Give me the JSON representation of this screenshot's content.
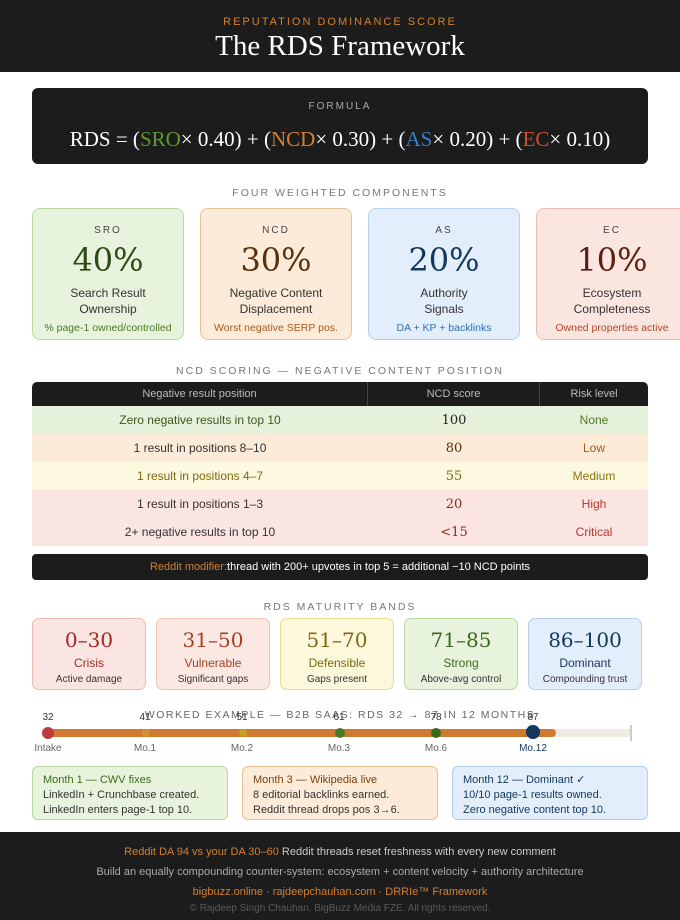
{
  "header": {
    "eyebrow": "REPUTATION DOMINANCE SCORE",
    "title": "The RDS Framework"
  },
  "formula": {
    "label": "FORMULA",
    "prefix": "RDS = (",
    "terms": [
      {
        "abbr": "SRO",
        "mult": "× 0.40)",
        "join": " + (",
        "color": "#5a9a2e"
      },
      {
        "abbr": "NCD",
        "mult": "× 0.30)",
        "join": " + (",
        "color": "#d4802e"
      },
      {
        "abbr": "AS",
        "mult": "× 0.20)",
        "join": " + (",
        "color": "#3a7ec8"
      },
      {
        "abbr": "EC",
        "mult": "× 0.10)",
        "join": "",
        "color": "#c8502e"
      }
    ]
  },
  "components": {
    "label": "FOUR WEIGHTED COMPONENTS",
    "items": [
      {
        "abbr": "SRO",
        "pct": "40%",
        "name1": "Search Result",
        "name2": "Ownership",
        "desc": "% page-1 owned/controlled"
      },
      {
        "abbr": "NCD",
        "pct": "30%",
        "name1": "Negative Content",
        "name2": "Displacement",
        "desc": "Worst negative SERP pos."
      },
      {
        "abbr": "AS",
        "pct": "20%",
        "name1": "Authority",
        "name2": "Signals",
        "desc": "DA + KP + backlinks"
      },
      {
        "abbr": "EC",
        "pct": "10%",
        "name1": "Ecosystem",
        "name2": "Completeness",
        "desc": "Owned properties active"
      }
    ]
  },
  "ncd": {
    "label": "NCD SCORING — NEGATIVE CONTENT POSITION",
    "headers": [
      "Negative result position",
      "NCD score",
      "Risk level"
    ],
    "rows": [
      {
        "position": "Zero negative results in top 10",
        "score": "100",
        "risk": "None"
      },
      {
        "position": "1 result in positions 8–10",
        "score": "80",
        "risk": "Low"
      },
      {
        "position": "1 result in positions 4–7",
        "score": "55",
        "risk": "Medium"
      },
      {
        "position": "1 result in positions 1–3",
        "score": "20",
        "risk": "High"
      },
      {
        "position": "2+ negative results in top 10",
        "score": "<15",
        "risk": "Critical"
      }
    ],
    "modifier_label": "Reddit modifier:",
    "modifier_text": "thread with 200+ upvotes in top 5 = additional −10 NCD points"
  },
  "bands": {
    "label": "RDS MATURITY BANDS",
    "items": [
      {
        "range": "0–30",
        "name": "Crisis",
        "desc": "Active damage"
      },
      {
        "range": "31–50",
        "name": "Vulnerable",
        "desc": "Significant gaps"
      },
      {
        "range": "51–70",
        "name": "Defensible",
        "desc": "Gaps present"
      },
      {
        "range": "71–85",
        "name": "Strong",
        "desc": "Above-avg control"
      },
      {
        "range": "86–100",
        "name": "Dominant",
        "desc": "Compounding trust"
      }
    ]
  },
  "worked": {
    "label": "WORKED EXAMPLE — B2B SAAS: RDS 32 → 87 IN 12 MONTHS",
    "points": [
      {
        "score": "32",
        "name": "Intake"
      },
      {
        "score": "41",
        "name": "Mo.1"
      },
      {
        "score": "51",
        "name": "Mo.2"
      },
      {
        "score": "61",
        "name": "Mo.3"
      },
      {
        "score": "78",
        "name": "Mo.6"
      },
      {
        "score": "87",
        "name": "Mo.12"
      }
    ],
    "cards": [
      {
        "title": "Month 1 — CWV fixes",
        "line1": "LinkedIn + Crunchbase created.",
        "line2": "LinkedIn enters page-1 top 10."
      },
      {
        "title": "Month 3 — Wikipedia live",
        "line1": "8 editorial backlinks earned.",
        "line2": "Reddit thread drops pos 3→6."
      },
      {
        "title": "Month 12 — Dominant ✓",
        "line1": "10/10 page-1 results owned.",
        "line2": "Zero negative content top 10."
      }
    ]
  },
  "footer": {
    "hl": "Reddit DA 94 vs your DA 30–60",
    "line1": " Reddit threads reset freshness with every new comment",
    "line2": "Build an equally compounding counter-system: ecosystem + content velocity + authority architecture",
    "links": "bigbuzz.online · rajdeepchauhan.com · DRRIe™ Framework",
    "copyright": "© Rajdeep Singh Chauhan, BigBuzz Media FZE. All rights reserved."
  }
}
